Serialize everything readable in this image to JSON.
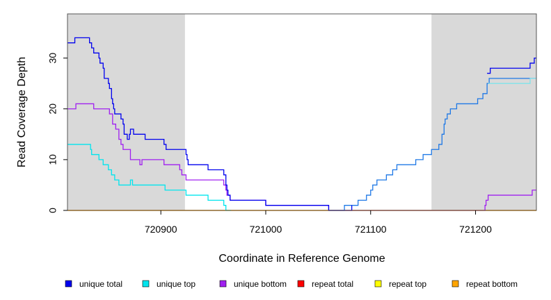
{
  "chart_data": {
    "type": "line",
    "title": "",
    "xlabel": "Coordinate in Reference Genome",
    "ylabel": "Read Coverage Depth",
    "xlim": [
      720811,
      721258
    ],
    "ylim": [
      0,
      38.7
    ],
    "x_ticks": [
      720900,
      721000,
      721100,
      721200
    ],
    "x_tick_labels": [
      "720900",
      "721000",
      "721100",
      "721200"
    ],
    "y_ticks": [
      0,
      10,
      20,
      30
    ],
    "y_tick_labels": [
      "0",
      "10",
      "20",
      "30"
    ],
    "grid": false,
    "step": true,
    "shaded_regions": [
      {
        "x0": 720811,
        "x1": 720923,
        "color": "#d9d9d9"
      },
      {
        "x0": 721158,
        "x1": 721258,
        "color": "#d9d9d9"
      }
    ],
    "legend_position": "bottom",
    "series": [
      {
        "name": "unique total",
        "color": "#0000ee",
        "points": [
          [
            720811,
            33
          ],
          [
            720818,
            34
          ],
          [
            720832,
            33
          ],
          [
            720834,
            32
          ],
          [
            720836,
            31
          ],
          [
            720841,
            30
          ],
          [
            720842,
            29
          ],
          [
            720845,
            28
          ],
          [
            720846,
            26
          ],
          [
            720850,
            25
          ],
          [
            720851,
            24
          ],
          [
            720853,
            22
          ],
          [
            720854,
            21
          ],
          [
            720855,
            20
          ],
          [
            720856,
            19
          ],
          [
            720862,
            18
          ],
          [
            720864,
            17
          ],
          [
            720865,
            15
          ],
          [
            720868,
            14
          ],
          [
            720870,
            15
          ],
          [
            720871,
            16
          ],
          [
            720874,
            15
          ],
          [
            720885,
            14
          ],
          [
            720903,
            13
          ],
          [
            720905,
            12
          ],
          [
            720923,
            12
          ],
          [
            720924,
            11
          ],
          [
            720925,
            10
          ],
          [
            720926,
            9
          ],
          [
            720945,
            8
          ],
          [
            720960,
            7
          ],
          [
            720962,
            5
          ],
          [
            720963,
            4
          ],
          [
            720964,
            3
          ],
          [
            720966,
            2
          ],
          [
            721000,
            1
          ],
          [
            721060,
            0
          ],
          [
            721082,
            1
          ]
        ]
      },
      {
        "name": "unique top",
        "color": "#00e5ee",
        "points": [
          [
            720811,
            13
          ],
          [
            720833,
            12
          ],
          [
            720834,
            11
          ],
          [
            720841,
            10
          ],
          [
            720845,
            9
          ],
          [
            720850,
            8
          ],
          [
            720853,
            7
          ],
          [
            720856,
            6
          ],
          [
            720860,
            5
          ],
          [
            720871,
            6
          ],
          [
            720873,
            5
          ],
          [
            720904,
            4
          ],
          [
            720923,
            4
          ],
          [
            720924,
            3
          ],
          [
            720945,
            2
          ],
          [
            720960,
            1
          ],
          [
            720962,
            0
          ],
          [
            720967,
            0
          ]
        ]
      },
      {
        "name": "unique bottom",
        "color": "#a020f0",
        "points": [
          [
            720811,
            20
          ],
          [
            720819,
            21
          ],
          [
            720836,
            20
          ],
          [
            720851,
            19
          ],
          [
            720854,
            17
          ],
          [
            720857,
            16
          ],
          [
            720860,
            14
          ],
          [
            720862,
            13
          ],
          [
            720864,
            12
          ],
          [
            720871,
            10
          ],
          [
            720880,
            9
          ],
          [
            720882,
            10
          ],
          [
            720903,
            9
          ],
          [
            720918,
            8
          ],
          [
            720920,
            7
          ],
          [
            720924,
            6
          ],
          [
            720960,
            5
          ],
          [
            720962,
            4
          ],
          [
            720963,
            3
          ],
          [
            720966,
            2
          ],
          [
            721000,
            1
          ],
          [
            721060,
            0
          ],
          [
            721208,
            0
          ],
          [
            721209,
            1
          ],
          [
            721210,
            2
          ],
          [
            721212,
            3
          ],
          [
            721254,
            4
          ],
          [
            721258,
            4
          ]
        ]
      },
      {
        "name": "repeat total",
        "color": "#ff0000",
        "points": [
          [
            720811,
            0
          ],
          [
            721258,
            0
          ]
        ]
      },
      {
        "name": "repeat top",
        "color": "#ffff00",
        "points": [
          [
            720811,
            0
          ],
          [
            721258,
            0
          ]
        ]
      },
      {
        "name": "repeat bottom",
        "color": "#ffa500",
        "points": [
          [
            720811,
            0
          ],
          [
            721258,
            0
          ]
        ]
      },
      {
        "name": "",
        "color": "#1e78e6",
        "points": [
          [
            721060,
            0
          ],
          [
            721075,
            1
          ],
          [
            721088,
            2
          ],
          [
            721096,
            3
          ],
          [
            721100,
            4
          ],
          [
            721102,
            5
          ],
          [
            721106,
            6
          ],
          [
            721115,
            7
          ],
          [
            721121,
            8
          ],
          [
            721125,
            9
          ],
          [
            721143,
            10
          ],
          [
            721150,
            11
          ],
          [
            721158,
            12
          ],
          [
            721165,
            13
          ],
          [
            721168,
            15
          ],
          [
            721170,
            17
          ],
          [
            721171,
            18
          ],
          [
            721173,
            19
          ],
          [
            721176,
            20
          ],
          [
            721182,
            21
          ],
          [
            721202,
            22
          ],
          [
            721207,
            23
          ],
          [
            721211,
            25
          ],
          [
            721213,
            26
          ],
          [
            721250,
            26
          ],
          [
            721258,
            26
          ]
        ]
      },
      {
        "name": "",
        "color": "#7fe3ea",
        "points": [
          [
            721212,
            25
          ],
          [
            721250,
            25
          ],
          [
            721252,
            26
          ],
          [
            721258,
            26
          ]
        ]
      },
      {
        "name": "",
        "color": "#0000ee",
        "points": [
          [
            721211,
            27
          ],
          [
            721214,
            28
          ],
          [
            721250,
            28
          ],
          [
            721252,
            29
          ],
          [
            721256,
            30
          ],
          [
            721258,
            30
          ]
        ]
      }
    ]
  },
  "legend": {
    "items": [
      {
        "label": "unique total",
        "color": "#0000ee"
      },
      {
        "label": "unique top",
        "color": "#00e5ee"
      },
      {
        "label": "unique bottom",
        "color": "#a020f0"
      },
      {
        "label": "repeat total",
        "color": "#ff0000"
      },
      {
        "label": "repeat top",
        "color": "#ffff00"
      },
      {
        "label": "repeat bottom",
        "color": "#ffa500"
      }
    ]
  }
}
